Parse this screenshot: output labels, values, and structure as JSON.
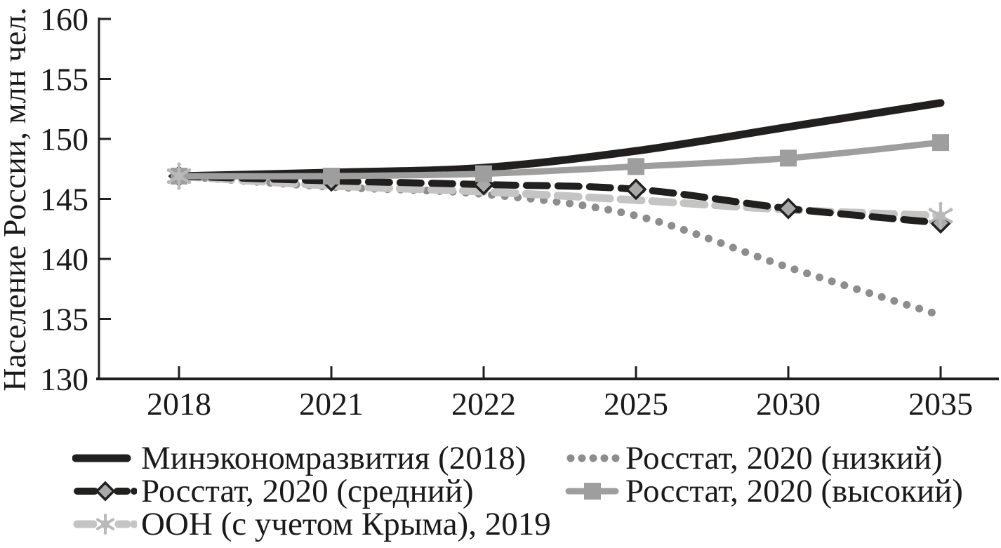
{
  "chart_data": {
    "type": "line",
    "title": "",
    "xlabel": "",
    "ylabel": "Население России, млн чел.",
    "x_categories": [
      "2018",
      "2021",
      "2022",
      "2025",
      "2030",
      "2035"
    ],
    "ylim": [
      130,
      160
    ],
    "yticks": [
      130,
      135,
      140,
      145,
      150,
      155,
      160
    ],
    "grid": false,
    "legend_position": "bottom",
    "axis_color": "#1f1f1f",
    "text_color": "#1a1a1a",
    "background": "#ffffff",
    "series": [
      {
        "id": "minekonomrazvitiya-2018",
        "name": "Минэкономразвития (2018)",
        "line_style": "solid",
        "color": "#221f1f",
        "stroke_width": 11,
        "marker": "none",
        "values": [
          146.9,
          147.2,
          147.6,
          149.0,
          151.0,
          153.0
        ]
      },
      {
        "id": "rosstat-2020-low",
        "name": "Росстат, 2020 (низкий)",
        "line_style": "dotted",
        "color": "#8d8d8d",
        "stroke_width": 11,
        "marker": "none",
        "values": [
          146.9,
          146.0,
          145.4,
          143.6,
          139.3,
          135.3
        ]
      },
      {
        "id": "rosstat-2020-mid",
        "name": "Росстат, 2020 (средний)",
        "line_style": "dashed",
        "color": "#221f1f",
        "stroke_width": 10,
        "marker": "diamond",
        "marker_color": "#a9a9a9",
        "marker_points": [
          0,
          1,
          2,
          3,
          4,
          5
        ],
        "values": [
          146.9,
          146.5,
          146.2,
          145.8,
          144.2,
          143.0
        ]
      },
      {
        "id": "rosstat-2020-high",
        "name": "Росстат, 2020 (высокий)",
        "line_style": "solid",
        "color": "#9e9e9e",
        "stroke_width": 9,
        "marker": "square",
        "marker_color": "#9e9e9e",
        "marker_points": [
          0,
          1,
          2,
          3,
          4,
          5
        ],
        "values": [
          146.9,
          146.9,
          147.1,
          147.7,
          148.4,
          149.7
        ]
      },
      {
        "id": "un-2019",
        "name": "ООН (с учетом Крыма), 2019",
        "line_style": "dashed",
        "color": "#c4c4c4",
        "stroke_width": 11,
        "marker": "star",
        "marker_color": "#b9b9b9",
        "marker_points": [
          0,
          5
        ],
        "values": [
          146.9,
          146.1,
          145.6,
          144.9,
          144.1,
          143.6
        ]
      }
    ],
    "draw_order": [
      "rosstat-2020-low",
      "un-2019",
      "rosstat-2020-mid",
      "minekonomrazvitiya-2018",
      "rosstat-2020-high"
    ],
    "legend": {
      "columns": [
        [
          "minekonomrazvitiya-2018",
          "rosstat-2020-mid",
          "un-2019"
        ],
        [
          "rosstat-2020-low",
          "rosstat-2020-high"
        ]
      ]
    }
  }
}
